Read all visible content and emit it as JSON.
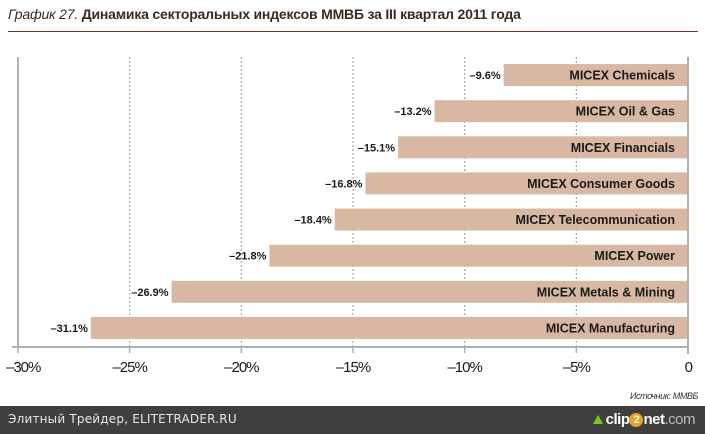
{
  "title": {
    "prefix": "График 27.",
    "main": "Динамика секторальных индексов ММВБ за III квартал 2011 года"
  },
  "chart_data": {
    "type": "bar",
    "orientation": "horizontal",
    "title": "График 27. Динамика секторальных индексов ММВБ за III квартал 2011 года",
    "xlabel": "",
    "ylabel": "",
    "xlim": [
      -30,
      0
    ],
    "grid": true,
    "categories": [
      "MICEX Chemicals",
      "MICEX Oil & Gas",
      "MICEX Financials",
      "MICEX Consumer Goods",
      "MICEX Telecommunication",
      "MICEX Power",
      "MICEX Metals & Mining",
      "MICEX Manufacturing"
    ],
    "values": [
      -9.6,
      -13.2,
      -15.1,
      -16.8,
      -18.4,
      -21.8,
      -26.9,
      -31.1
    ],
    "value_labels": [
      "–9.6%",
      "–13.2%",
      "–15.1%",
      "–16.8%",
      "–18.4%",
      "–21.8%",
      "–26.9%",
      "–31.1%"
    ],
    "ticks": [
      -30,
      -25,
      -20,
      -15,
      -10,
      -5,
      0
    ],
    "tick_labels": [
      "–30%",
      "–25%",
      "–20%",
      "–15%",
      "–10%",
      "–5%",
      "0"
    ],
    "bar_color": "#d9b8a3",
    "source": "Источник: ММВБ"
  },
  "footer": {
    "site": "Элитный Трейдер, ELITETRADER.RU",
    "brand_clip": "clip",
    "brand_two": "2",
    "brand_net": "net",
    "brand_com": ".com"
  }
}
